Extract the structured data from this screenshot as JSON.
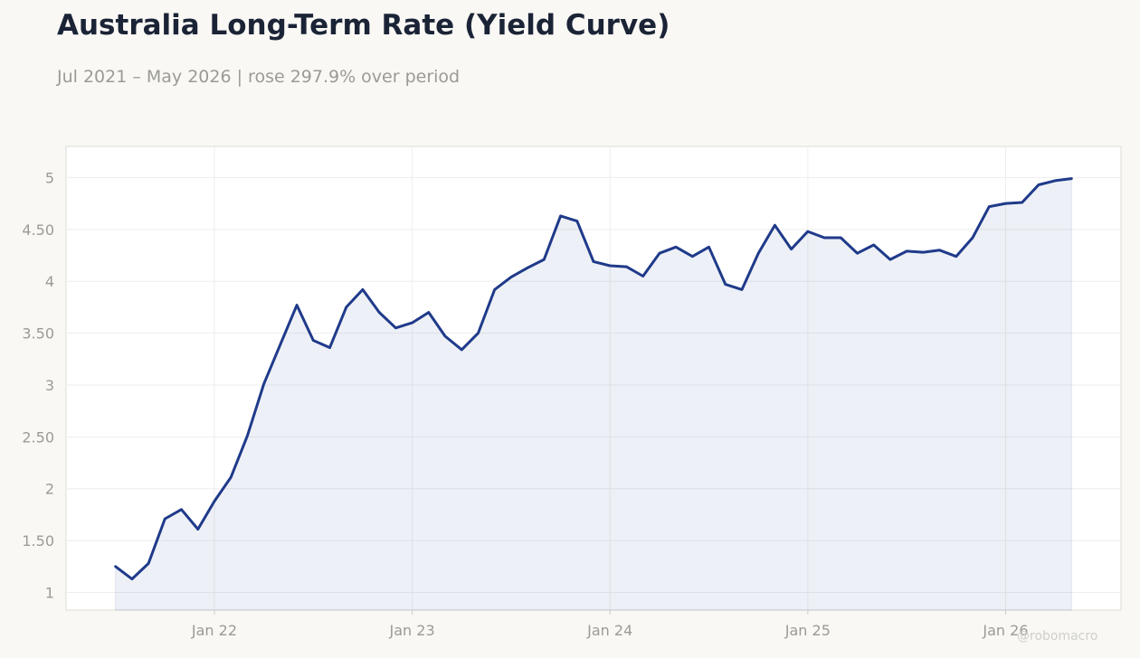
{
  "header": {
    "title": "Australia Long-Term Rate (Yield Curve)",
    "subtitle": "Jul 2021 – May 2026 | rose 297.9% over period"
  },
  "watermark": "@robomacro",
  "colors": {
    "line": "#1f3a8a",
    "fill": "#1f3a8a",
    "background": "#f9f8f5",
    "plot_background": "#ffffff",
    "grid": "#eeeeee",
    "tick_text": "#9a9a96"
  },
  "chart_data": {
    "type": "area",
    "title": "Australia Long-Term Rate (Yield Curve)",
    "subtitle": "Jul 2021 – May 2026 | rose 297.9% over period",
    "xlabel": "",
    "ylabel": "",
    "x": [
      "2021-07",
      "2021-08",
      "2021-09",
      "2021-10",
      "2021-11",
      "2021-12",
      "2022-01",
      "2022-02",
      "2022-03",
      "2022-04",
      "2022-05",
      "2022-06",
      "2022-07",
      "2022-08",
      "2022-09",
      "2022-10",
      "2022-11",
      "2022-12",
      "2023-01",
      "2023-02",
      "2023-03",
      "2023-04",
      "2023-05",
      "2023-06",
      "2023-07",
      "2023-08",
      "2023-09",
      "2023-10",
      "2023-11",
      "2023-12",
      "2024-01",
      "2024-02",
      "2024-03",
      "2024-04",
      "2024-05",
      "2024-06",
      "2024-07",
      "2024-08",
      "2024-09",
      "2024-10",
      "2024-11",
      "2024-12",
      "2025-01",
      "2025-02",
      "2025-03",
      "2025-04",
      "2025-05",
      "2025-06",
      "2025-07",
      "2025-08",
      "2025-09",
      "2025-10",
      "2025-11",
      "2025-12",
      "2026-01",
      "2026-02",
      "2026-03",
      "2026-04",
      "2026-05"
    ],
    "series": [
      {
        "values": [
          1.25,
          1.13,
          1.28,
          1.71,
          1.8,
          1.61,
          1.88,
          2.11,
          2.51,
          3.01,
          3.39,
          3.77,
          3.43,
          3.36,
          3.75,
          3.92,
          3.7,
          3.55,
          3.6,
          3.7,
          3.47,
          3.34,
          3.5,
          3.92,
          4.04,
          4.13,
          4.21,
          4.63,
          4.58,
          4.19,
          4.15,
          4.14,
          4.05,
          4.27,
          4.33,
          4.24,
          4.33,
          3.97,
          3.92,
          4.27,
          4.54,
          4.31,
          4.48,
          4.42,
          4.42,
          4.27,
          4.35,
          4.21,
          4.29,
          4.28,
          4.3,
          4.24,
          4.42,
          4.72,
          4.75,
          4.76,
          4.93,
          4.97,
          4.99
        ]
      }
    ],
    "xticks": [
      {
        "label": "Jan 22",
        "at": "2022-01"
      },
      {
        "label": "Jan 23",
        "at": "2023-01"
      },
      {
        "label": "Jan 24",
        "at": "2024-01"
      },
      {
        "label": "Jan 25",
        "at": "2025-01"
      },
      {
        "label": "Jan 26",
        "at": "2026-01"
      }
    ],
    "yticks": [
      {
        "value": 1,
        "label": "1"
      },
      {
        "value": 1.5,
        "label": "1.50"
      },
      {
        "value": 2,
        "label": "2"
      },
      {
        "value": 2.5,
        "label": "2.50"
      },
      {
        "value": 3,
        "label": "3"
      },
      {
        "value": 3.5,
        "label": "3.50"
      },
      {
        "value": 4,
        "label": "4"
      },
      {
        "value": 4.5,
        "label": "4.50"
      },
      {
        "value": 5,
        "label": "5"
      }
    ],
    "xlim": [
      "2021-04",
      "2026-08"
    ],
    "ylim": [
      0.83,
      5.3
    ],
    "grid": true,
    "legend": "none"
  }
}
